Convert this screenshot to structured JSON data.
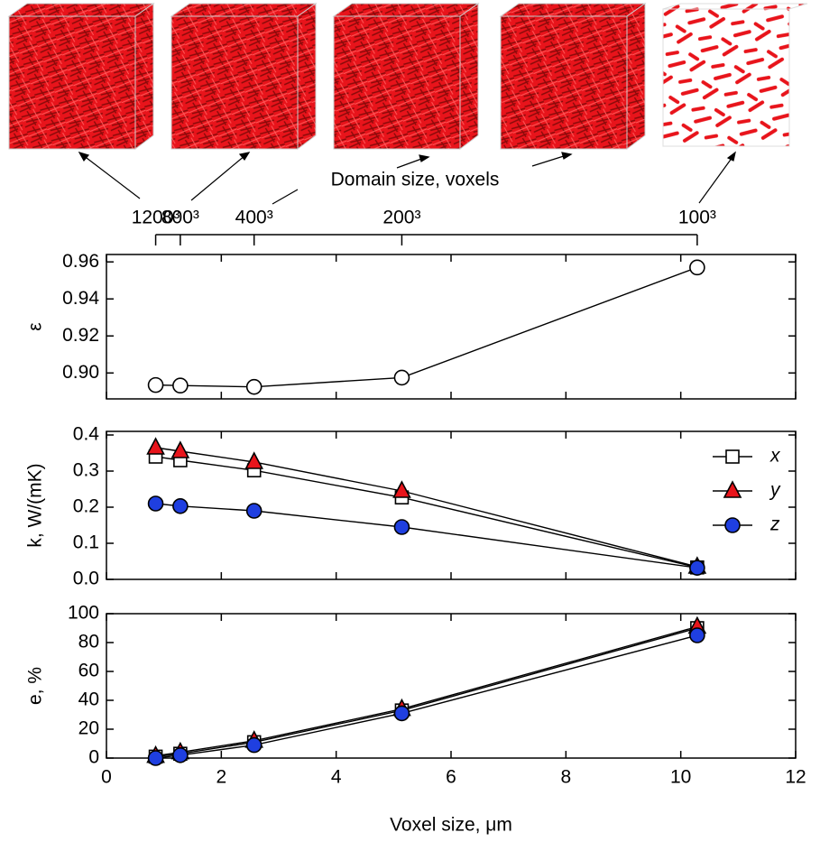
{
  "chart_data": [
    {
      "type": "line",
      "ylabel": "ε",
      "top_axis": {
        "label": "Domain size, voxels",
        "ticks": [
          {
            "value": 0.857,
            "label": "1200³"
          },
          {
            "value": 1.286,
            "label": "800³"
          },
          {
            "value": 2.571,
            "label": "400³"
          },
          {
            "value": 5.143,
            "label": "200³"
          },
          {
            "value": 10.286,
            "label": "100³"
          }
        ]
      },
      "x": [
        0.857,
        1.286,
        2.571,
        5.143,
        10.286
      ],
      "xlim": [
        0,
        12
      ],
      "xticks": [
        0,
        2,
        4,
        6,
        8,
        10,
        12
      ],
      "ylim": [
        0.886,
        0.964
      ],
      "yticks": [
        {
          "value": 0.9,
          "label": "0.90"
        },
        0.92,
        0.94,
        0.96
      ],
      "series": [
        {
          "color": "#ffffff",
          "marker": "circle",
          "values": [
            0.8935,
            0.8932,
            0.8925,
            0.8975,
            0.957
          ]
        }
      ]
    },
    {
      "type": "line",
      "ylabel": "k, W/(mK)",
      "legend": "upper right",
      "x": [
        0.857,
        1.286,
        2.571,
        5.143,
        10.286
      ],
      "xlim": [
        0,
        12
      ],
      "xticks": [
        0,
        2,
        4,
        6,
        8,
        10,
        12
      ],
      "ylim": [
        0,
        0.41
      ],
      "yticks": [
        {
          "value": 0,
          "label": "0.0"
        },
        0.1,
        0.2,
        0.3,
        0.4
      ],
      "series": [
        {
          "name": "x",
          "color": "#ffffff",
          "marker": "square",
          "values": [
            0.34,
            0.33,
            0.302,
            0.227,
            0.033
          ]
        },
        {
          "name": "y",
          "color": "#e8141b",
          "marker": "triangle",
          "values": [
            0.365,
            0.355,
            0.325,
            0.245,
            0.035
          ]
        },
        {
          "name": "z",
          "color": "#1f3fe0",
          "marker": "circle",
          "values": [
            0.21,
            0.203,
            0.19,
            0.145,
            0.032
          ]
        }
      ]
    },
    {
      "type": "line",
      "ylabel": "e, %",
      "xlabel": "Voxel size, μm",
      "x": [
        0.857,
        1.286,
        2.571,
        5.143,
        10.286
      ],
      "xlim": [
        0,
        12
      ],
      "xticks": [
        0,
        2,
        4,
        6,
        8,
        10,
        12
      ],
      "ylim": [
        0,
        100
      ],
      "yticks": [
        0,
        20,
        40,
        60,
        80,
        100
      ],
      "series": [
        {
          "color": "#ffffff",
          "marker": "square",
          "values": [
            1,
            3,
            11,
            33,
            90
          ]
        },
        {
          "color": "#e8141b",
          "marker": "triangle",
          "values": [
            1.5,
            4,
            12,
            34,
            91
          ]
        },
        {
          "color": "#1f3fe0",
          "marker": "circle",
          "values": [
            0,
            2,
            9,
            31,
            85
          ]
        }
      ]
    }
  ]
}
